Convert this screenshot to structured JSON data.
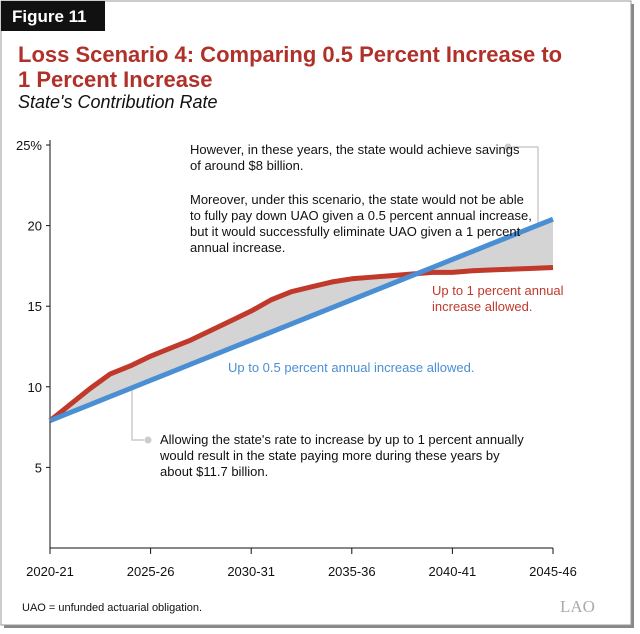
{
  "figure_label": "Figure 11",
  "footnote": "UAO = unfunded actuarial obligation.",
  "logo": "LAO",
  "chart_data": {
    "type": "line",
    "title": "Loss Scenario 4: Comparing 0.5 Percent Increase to 1 Percent Increase",
    "subtitle": "State's Contribution Rate",
    "categories": [
      "2020-21",
      null,
      null,
      null,
      null,
      "2025-26",
      null,
      null,
      null,
      null,
      "2030-31",
      null,
      null,
      null,
      null,
      "2035-36",
      null,
      null,
      null,
      null,
      "2040-41",
      null,
      null,
      null,
      null,
      "2045-46"
    ],
    "ylim": [
      0,
      25
    ],
    "yticks": [
      5,
      10,
      15,
      20,
      {
        "value": 25,
        "label": "25%"
      }
    ],
    "grid": false,
    "shade_between": true,
    "series": [
      {
        "name": "Up to 1 percent annual increase allowed.",
        "color": "#c0392b",
        "values": [
          7.9,
          8.9,
          9.9,
          10.8,
          11.3,
          11.9,
          12.4,
          12.9,
          13.5,
          14.1,
          14.7,
          15.4,
          15.9,
          16.2,
          16.5,
          16.7,
          16.8,
          16.9,
          17.0,
          17.1,
          17.1,
          17.2,
          17.25,
          17.3,
          17.35,
          17.4
        ]
      },
      {
        "name": "Up to 0.5 percent annual increase allowed.",
        "color": "#4a8fd4",
        "values": [
          7.9,
          8.4,
          8.9,
          9.4,
          9.9,
          10.4,
          10.9,
          11.4,
          11.9,
          12.4,
          12.9,
          13.4,
          13.9,
          14.4,
          14.9,
          15.4,
          15.9,
          16.4,
          16.9,
          17.4,
          17.9,
          18.4,
          18.9,
          19.4,
          19.9,
          20.4
        ]
      }
    ],
    "annotations": [
      "However, in these years, the state would achieve savings of around $8 billion.",
      "Moreover, under this scenario, the state would not be able to fully pay down UAO given a 0.5 percent annual increase, but it would successfully eliminate UAO given a 1 percent annual increase.",
      "Allowing the state's rate to increase by up to 1 percent annually would result in the state paying more during these years by about $11.7 billion."
    ]
  }
}
